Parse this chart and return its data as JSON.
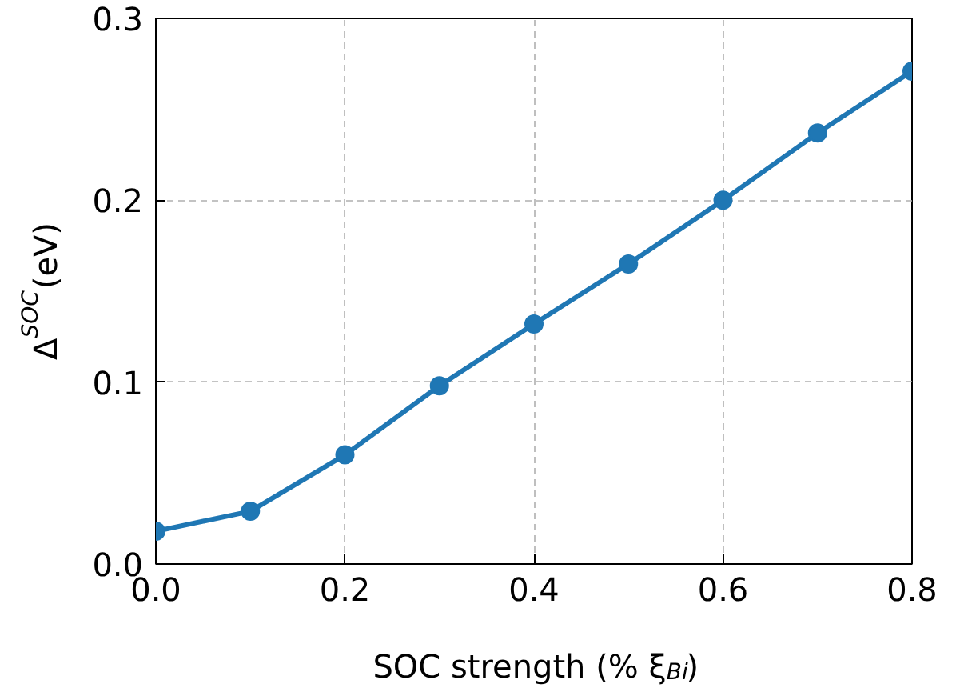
{
  "chart_data": {
    "type": "line",
    "xlabel": "SOC strength (% ξ$_{Bi}$)",
    "ylabel": "Δ$^{SOC}$(eV)",
    "x": [
      0.0,
      0.1,
      0.2,
      0.3,
      0.4,
      0.5,
      0.6,
      0.7,
      0.8
    ],
    "series": [
      {
        "color": "#1f77b4",
        "values": [
          0.018,
          0.029,
          0.06,
          0.098,
          0.132,
          0.165,
          0.2,
          0.237,
          0.271
        ]
      }
    ],
    "xlim": [
      0.0,
      0.8
    ],
    "ylim": [
      0.0,
      0.3
    ],
    "xticks": [
      {
        "value": 0.0,
        "label": "0.0"
      },
      {
        "value": 0.2,
        "label": "0.2"
      },
      {
        "value": 0.4,
        "label": "0.4"
      },
      {
        "value": 0.6,
        "label": "0.6"
      },
      {
        "value": 0.8,
        "label": "0.8"
      }
    ],
    "yticks": [
      {
        "value": 0.0,
        "label": "0.0"
      },
      {
        "value": 0.1,
        "label": "0.1"
      },
      {
        "value": 0.2,
        "label": "0.2"
      },
      {
        "value": 0.3,
        "label": "0.3"
      }
    ],
    "grid": true,
    "marker": "circle",
    "line_style": "solid"
  }
}
